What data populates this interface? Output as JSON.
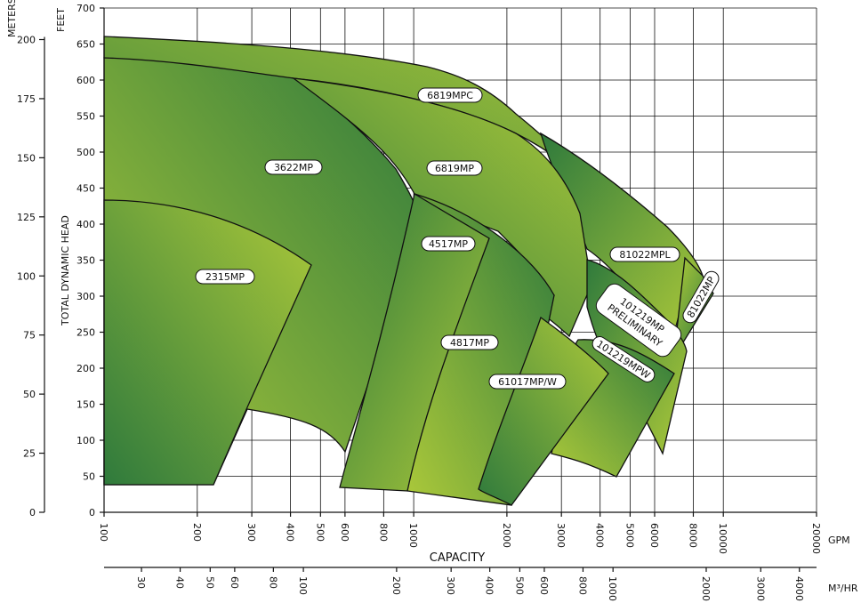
{
  "chart_data": {
    "type": "area",
    "xlabel": "CAPACITY",
    "x_scale": "log",
    "x_gpm": {
      "unit": "GPM",
      "ticks": [
        100,
        200,
        300,
        400,
        500,
        600,
        800,
        1000,
        2000,
        3000,
        4000,
        5000,
        6000,
        8000,
        10000,
        20000
      ],
      "range": [
        100,
        20000
      ]
    },
    "x_m3hr": {
      "unit": "M³/HR",
      "ticks": [
        30,
        40,
        50,
        60,
        80,
        100,
        200,
        300,
        400,
        500,
        600,
        800,
        1000,
        2000,
        3000,
        4000
      ]
    },
    "ylabel": "TOTAL DYNAMIC HEAD",
    "y_feet": {
      "unit": "FEET",
      "ticks": [
        0,
        50,
        100,
        150,
        200,
        250,
        300,
        350,
        400,
        450,
        500,
        550,
        600,
        650,
        700
      ],
      "range": [
        0,
        700
      ]
    },
    "y_meters": {
      "unit": "METERS",
      "ticks": [
        0,
        25,
        50,
        75,
        100,
        125,
        150,
        175,
        200
      ]
    },
    "grid": true,
    "colors": {
      "region_dark": "#2f7a3c",
      "region_light": "#acc93a"
    },
    "regions": [
      {
        "name": "6819MPC",
        "gpm": [
          100,
          300,
          1000,
          1500,
          2000,
          2500,
          3000,
          3500,
          4000,
          5000,
          7000
        ],
        "head_ft": [
          660,
          650,
          630,
          600,
          560,
          510,
          460,
          410,
          360,
          300,
          280
        ]
      },
      {
        "name": "81022MPL",
        "gpm": [
          3000,
          4000,
          5000,
          6000,
          7000,
          7500,
          8000,
          7500
        ],
        "head_ft": [
          530,
          500,
          460,
          410,
          360,
          340,
          330,
          250
        ]
      },
      {
        "name": "81022MP",
        "gpm": [
          8000,
          9000,
          7500
        ],
        "head_ft": [
          330,
          310,
          240
        ]
      },
      {
        "name": "3622MP",
        "gpm": [
          100,
          200,
          400,
          600,
          800,
          950
        ],
        "head_ft": [
          635,
          625,
          600,
          540,
          470,
          400
        ]
      },
      {
        "name": "6819MP",
        "gpm": [
          380,
          600,
          1000,
          1500,
          2000,
          3000,
          3500,
          4000
        ],
        "head_ft": [
          600,
          590,
          560,
          520,
          480,
          420,
          370,
          310
        ]
      },
      {
        "name": "101219MP PRELIMINARY",
        "gpm": [
          4000,
          5000,
          6000,
          7000,
          7500,
          7000
        ],
        "head_ft": [
          320,
          300,
          280,
          260,
          230,
          150
        ]
      },
      {
        "name": "101219MPW",
        "gpm": [
          3800,
          4500,
          5500,
          6500,
          6000,
          4500
        ],
        "head_ft": [
          250,
          240,
          220,
          200,
          100,
          50
        ]
      },
      {
        "name": "2315MP",
        "gpm": [
          100,
          200,
          300,
          400,
          470
        ],
        "head_ft": [
          435,
          425,
          400,
          370,
          345
        ]
      },
      {
        "name": "4517MP",
        "gpm": [
          950,
          1200,
          1500,
          1650,
          1400,
          1000,
          800
        ],
        "head_ft": [
          440,
          430,
          400,
          380,
          300,
          180,
          110
        ]
      },
      {
        "name": "4817MP",
        "gpm": [
          1000,
          1500,
          2000,
          2500,
          3000,
          2600,
          2000,
          1400
        ],
        "head_ft": [
          440,
          410,
          370,
          340,
          300,
          200,
          100,
          50
        ]
      },
      {
        "name": "61017MP/W",
        "gpm": [
          2000,
          2500,
          3000,
          3500,
          3000,
          2500,
          2000
        ],
        "head_ft": [
          270,
          255,
          240,
          190,
          100,
          50,
          10
        ]
      }
    ]
  }
}
